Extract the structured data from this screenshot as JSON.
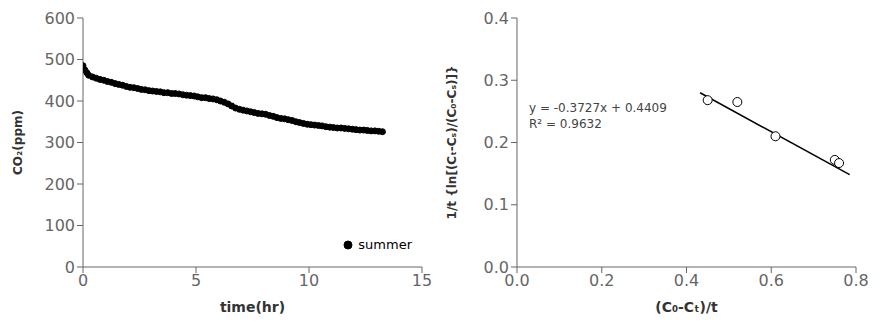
{
  "chart_data": [
    {
      "type": "scatter",
      "xlabel": "time(hr)",
      "ylabel": "CO₂(ppm)",
      "xlim": [
        0,
        15
      ],
      "ylim": [
        0,
        600
      ],
      "xticks": [
        0,
        5,
        10,
        15
      ],
      "yticks": [
        0,
        100,
        200,
        300,
        400,
        500,
        600
      ],
      "legend": "lower right",
      "x": [
        0.0,
        0.08,
        0.17,
        0.25,
        0.42,
        0.58,
        0.75,
        0.92,
        1.08,
        1.25,
        1.42,
        1.58,
        1.75,
        1.92,
        2.08,
        2.25,
        2.42,
        2.58,
        2.75,
        2.92,
        3.08,
        3.25,
        3.42,
        3.58,
        3.75,
        3.92,
        4.08,
        4.25,
        4.42,
        4.58,
        4.75,
        4.92,
        5.08,
        5.25,
        5.42,
        5.58,
        5.75,
        5.92,
        6.08,
        6.25,
        6.42,
        6.58,
        6.75,
        6.92,
        7.08,
        7.25,
        7.42,
        7.58,
        7.75,
        7.92,
        8.08,
        8.25,
        8.42,
        8.58,
        8.75,
        8.92,
        9.08,
        9.25,
        9.42,
        9.58,
        9.75,
        9.92,
        10.08,
        10.25,
        10.42,
        10.58,
        10.75,
        10.92,
        11.08,
        11.25,
        11.42,
        11.58,
        11.75,
        11.92,
        12.08,
        12.25,
        12.42,
        12.58,
        12.75,
        12.92,
        13.08,
        13.25
      ],
      "series": [
        {
          "name": "summer",
          "color": "black",
          "marker": "o",
          "values": [
            485,
            475,
            468,
            462,
            458,
            455,
            452,
            450,
            447,
            445,
            442,
            440,
            438,
            435,
            433,
            432,
            430,
            428,
            427,
            425,
            424,
            423,
            422,
            420,
            420,
            418,
            418,
            417,
            415,
            414,
            413,
            412,
            410,
            408,
            408,
            406,
            405,
            403,
            400,
            397,
            393,
            388,
            383,
            380,
            378,
            376,
            374,
            372,
            370,
            369,
            368,
            365,
            363,
            360,
            358,
            357,
            355,
            353,
            350,
            348,
            346,
            344,
            343,
            342,
            341,
            340,
            338,
            337,
            336,
            335,
            335,
            334,
            333,
            332,
            331,
            330,
            330,
            329,
            328,
            328,
            327,
            326
          ]
        }
      ]
    },
    {
      "type": "scatter",
      "xlabel": "(C₀-Cₜ)/t",
      "ylabel": "1/t {ln[(Cₜ-Cₛ)/(C₀-Cₛ)]}",
      "xlim": [
        0,
        0.8
      ],
      "ylim": [
        0,
        0.4
      ],
      "xticks": [
        {
          "value": 0,
          "label": "0.0"
        },
        0.2,
        0.4,
        0.6,
        0.8
      ],
      "yticks": [
        {
          "value": 0,
          "label": "0.0"
        },
        0.1,
        0.2,
        0.3,
        0.4
      ],
      "annotations": [
        "y = -0.3727x + 0.4409",
        "R² = 0.9632"
      ],
      "series": [
        {
          "type": "scatter",
          "color": "black",
          "marker": "open_circle",
          "x": [
            0.45,
            0.52,
            0.61,
            0.75,
            0.76
          ],
          "values": [
            0.268,
            0.265,
            0.21,
            0.172,
            0.167
          ]
        },
        {
          "type": "line",
          "color": "black",
          "line_style": "solid",
          "x": [
            0.432,
            0.785
          ],
          "values": [
            0.2798936,
            0.1483305
          ]
        }
      ]
    }
  ]
}
